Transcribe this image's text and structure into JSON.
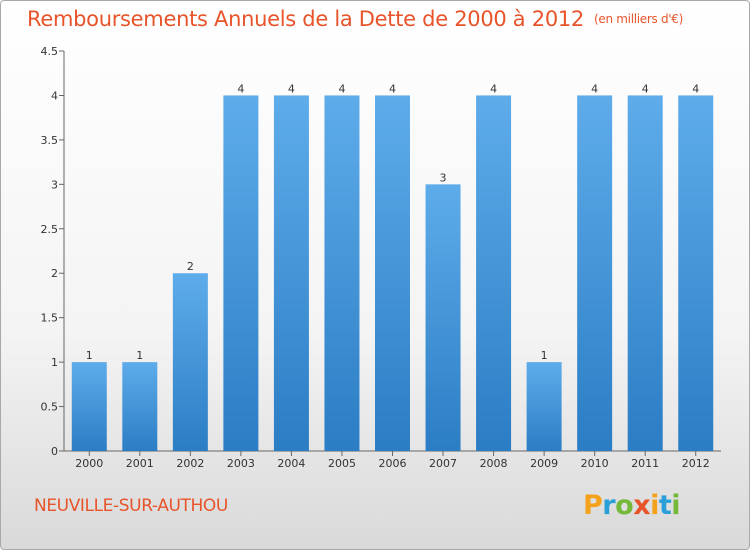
{
  "title": "Remboursements Annuels de la Dette de 2000 à 2012",
  "unit_note": "(en milliers d'€)",
  "commune": "NEUVILLE-SUR-AUTHOU",
  "logo": {
    "text": "Proxiti",
    "letters": [
      "P",
      "r",
      "o",
      "x",
      "i",
      "t",
      "i"
    ],
    "colors": [
      "#f4a21c",
      "#2a9fd8",
      "#74b93a",
      "#e8542a",
      "#f4a21c",
      "#2a9fd8",
      "#74b93a"
    ]
  },
  "colors": {
    "title": "#e8542a",
    "bar_top": "#5eacea",
    "bar_bottom": "#2b7dc4",
    "axis": "#666666",
    "text": "#333333"
  },
  "chart_data": {
    "type": "bar",
    "title": "Remboursements Annuels de la Dette de 2000 à 2012",
    "xlabel": "",
    "ylabel": "",
    "categories": [
      "2000",
      "2001",
      "2002",
      "2003",
      "2004",
      "2005",
      "2006",
      "2007",
      "2008",
      "2009",
      "2010",
      "2011",
      "2012"
    ],
    "values": [
      1,
      1,
      2,
      4,
      4,
      4,
      4,
      3,
      4,
      1,
      4,
      4,
      4
    ],
    "data_labels": [
      "1",
      "1",
      "2",
      "4",
      "4",
      "4",
      "4",
      "3",
      "4",
      "1",
      "4",
      "4",
      "4"
    ],
    "ylim": [
      0,
      4.5
    ],
    "yticks": [
      0,
      0.5,
      1,
      1.5,
      2,
      2.5,
      3,
      3.5,
      4,
      4.5
    ],
    "ytick_labels": [
      "0",
      "0.5",
      "1",
      "1.5",
      "2",
      "2.5",
      "3",
      "3.5",
      "4",
      "4.5"
    ],
    "grid": false,
    "legend": "none"
  }
}
